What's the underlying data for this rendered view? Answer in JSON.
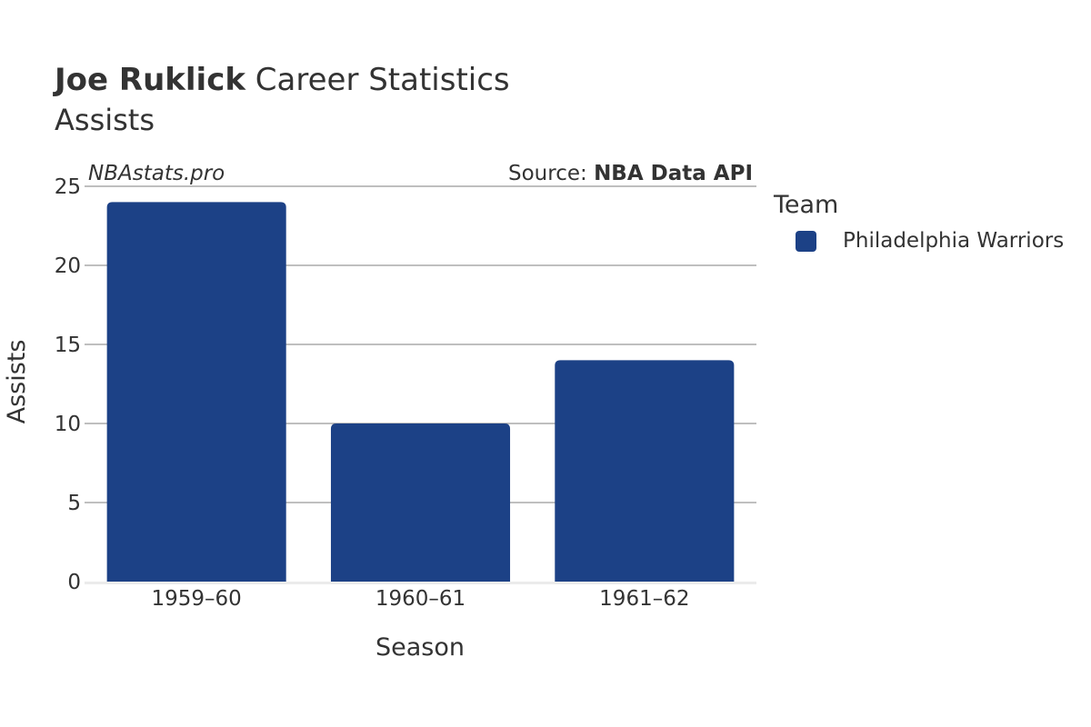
{
  "header": {
    "player": "Joe Ruklick",
    "title_rest": "Career Statistics",
    "subtitle": "Assists"
  },
  "watermark": "NBAstats.pro",
  "source": {
    "prefix": "Source: ",
    "name": "NBA Data API"
  },
  "legend": {
    "title": "Team",
    "items": [
      {
        "label": "Philadelphia Warriors",
        "color": "#1c4186"
      }
    ]
  },
  "chart_data": {
    "type": "bar",
    "categories": [
      "1959–60",
      "1960–61",
      "1961–62"
    ],
    "series": [
      {
        "name": "Philadelphia Warriors",
        "values": [
          24,
          10,
          14
        ],
        "color": "#1c4186"
      }
    ],
    "xlabel": "Season",
    "ylabel": "Assists",
    "ylim": [
      0,
      25
    ],
    "yticks": [
      0,
      5,
      10,
      15,
      20,
      25
    ],
    "grid": true,
    "legend_position": "right"
  }
}
